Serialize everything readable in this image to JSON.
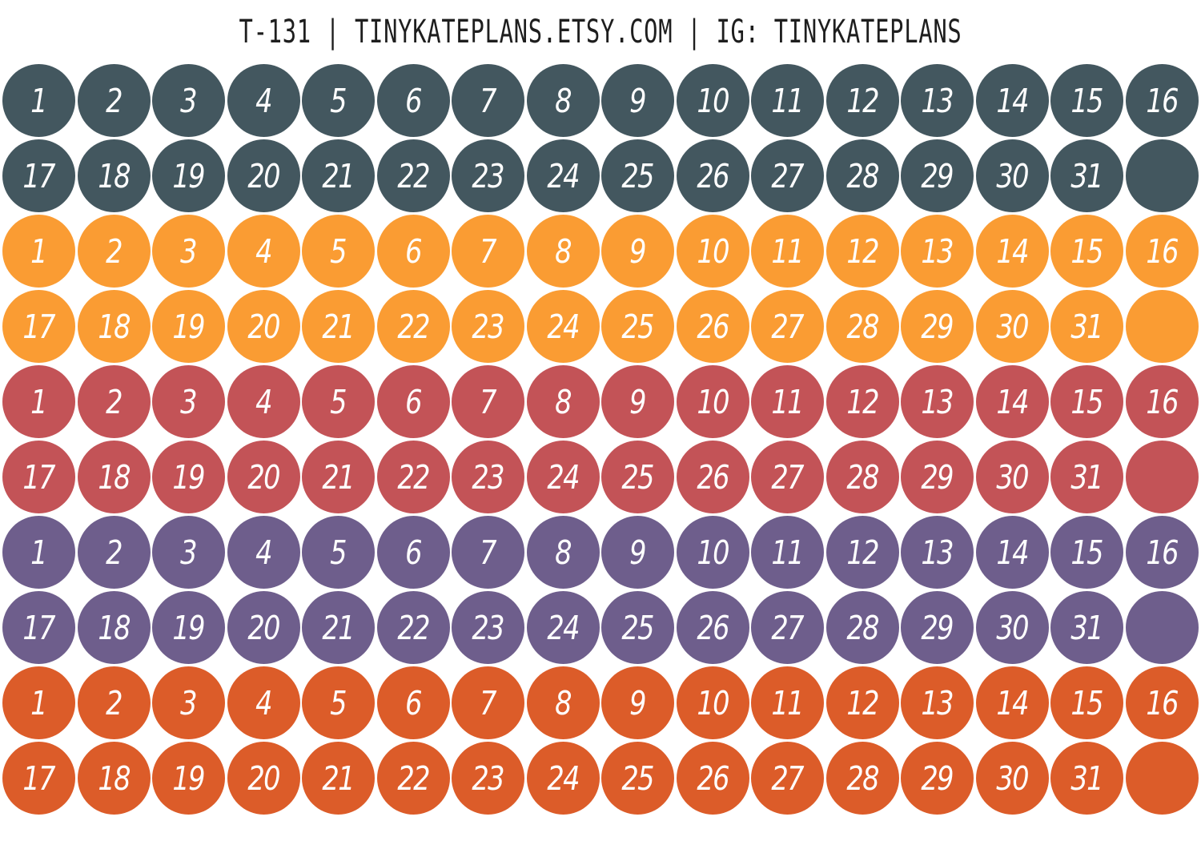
{
  "header": {
    "title": "T-131 | TINYKATEPLANS.ETSY.COM | IG: TINYKATEPLANS"
  },
  "stickers": {
    "numbers": [
      "1",
      "2",
      "3",
      "4",
      "5",
      "6",
      "7",
      "8",
      "9",
      "10",
      "11",
      "12",
      "13",
      "14",
      "15",
      "16",
      "17",
      "18",
      "19",
      "20",
      "21",
      "22",
      "23",
      "24",
      "25",
      "26",
      "27",
      "28",
      "29",
      "30",
      "31",
      ""
    ],
    "groups": [
      {
        "color": "#43575f",
        "name": "slate"
      },
      {
        "color": "#fa9c33",
        "name": "orange"
      },
      {
        "color": "#c35357",
        "name": "red"
      },
      {
        "color": "#6e5e8c",
        "name": "purple"
      },
      {
        "color": "#dc5c29",
        "name": "burnt-orange"
      }
    ]
  }
}
